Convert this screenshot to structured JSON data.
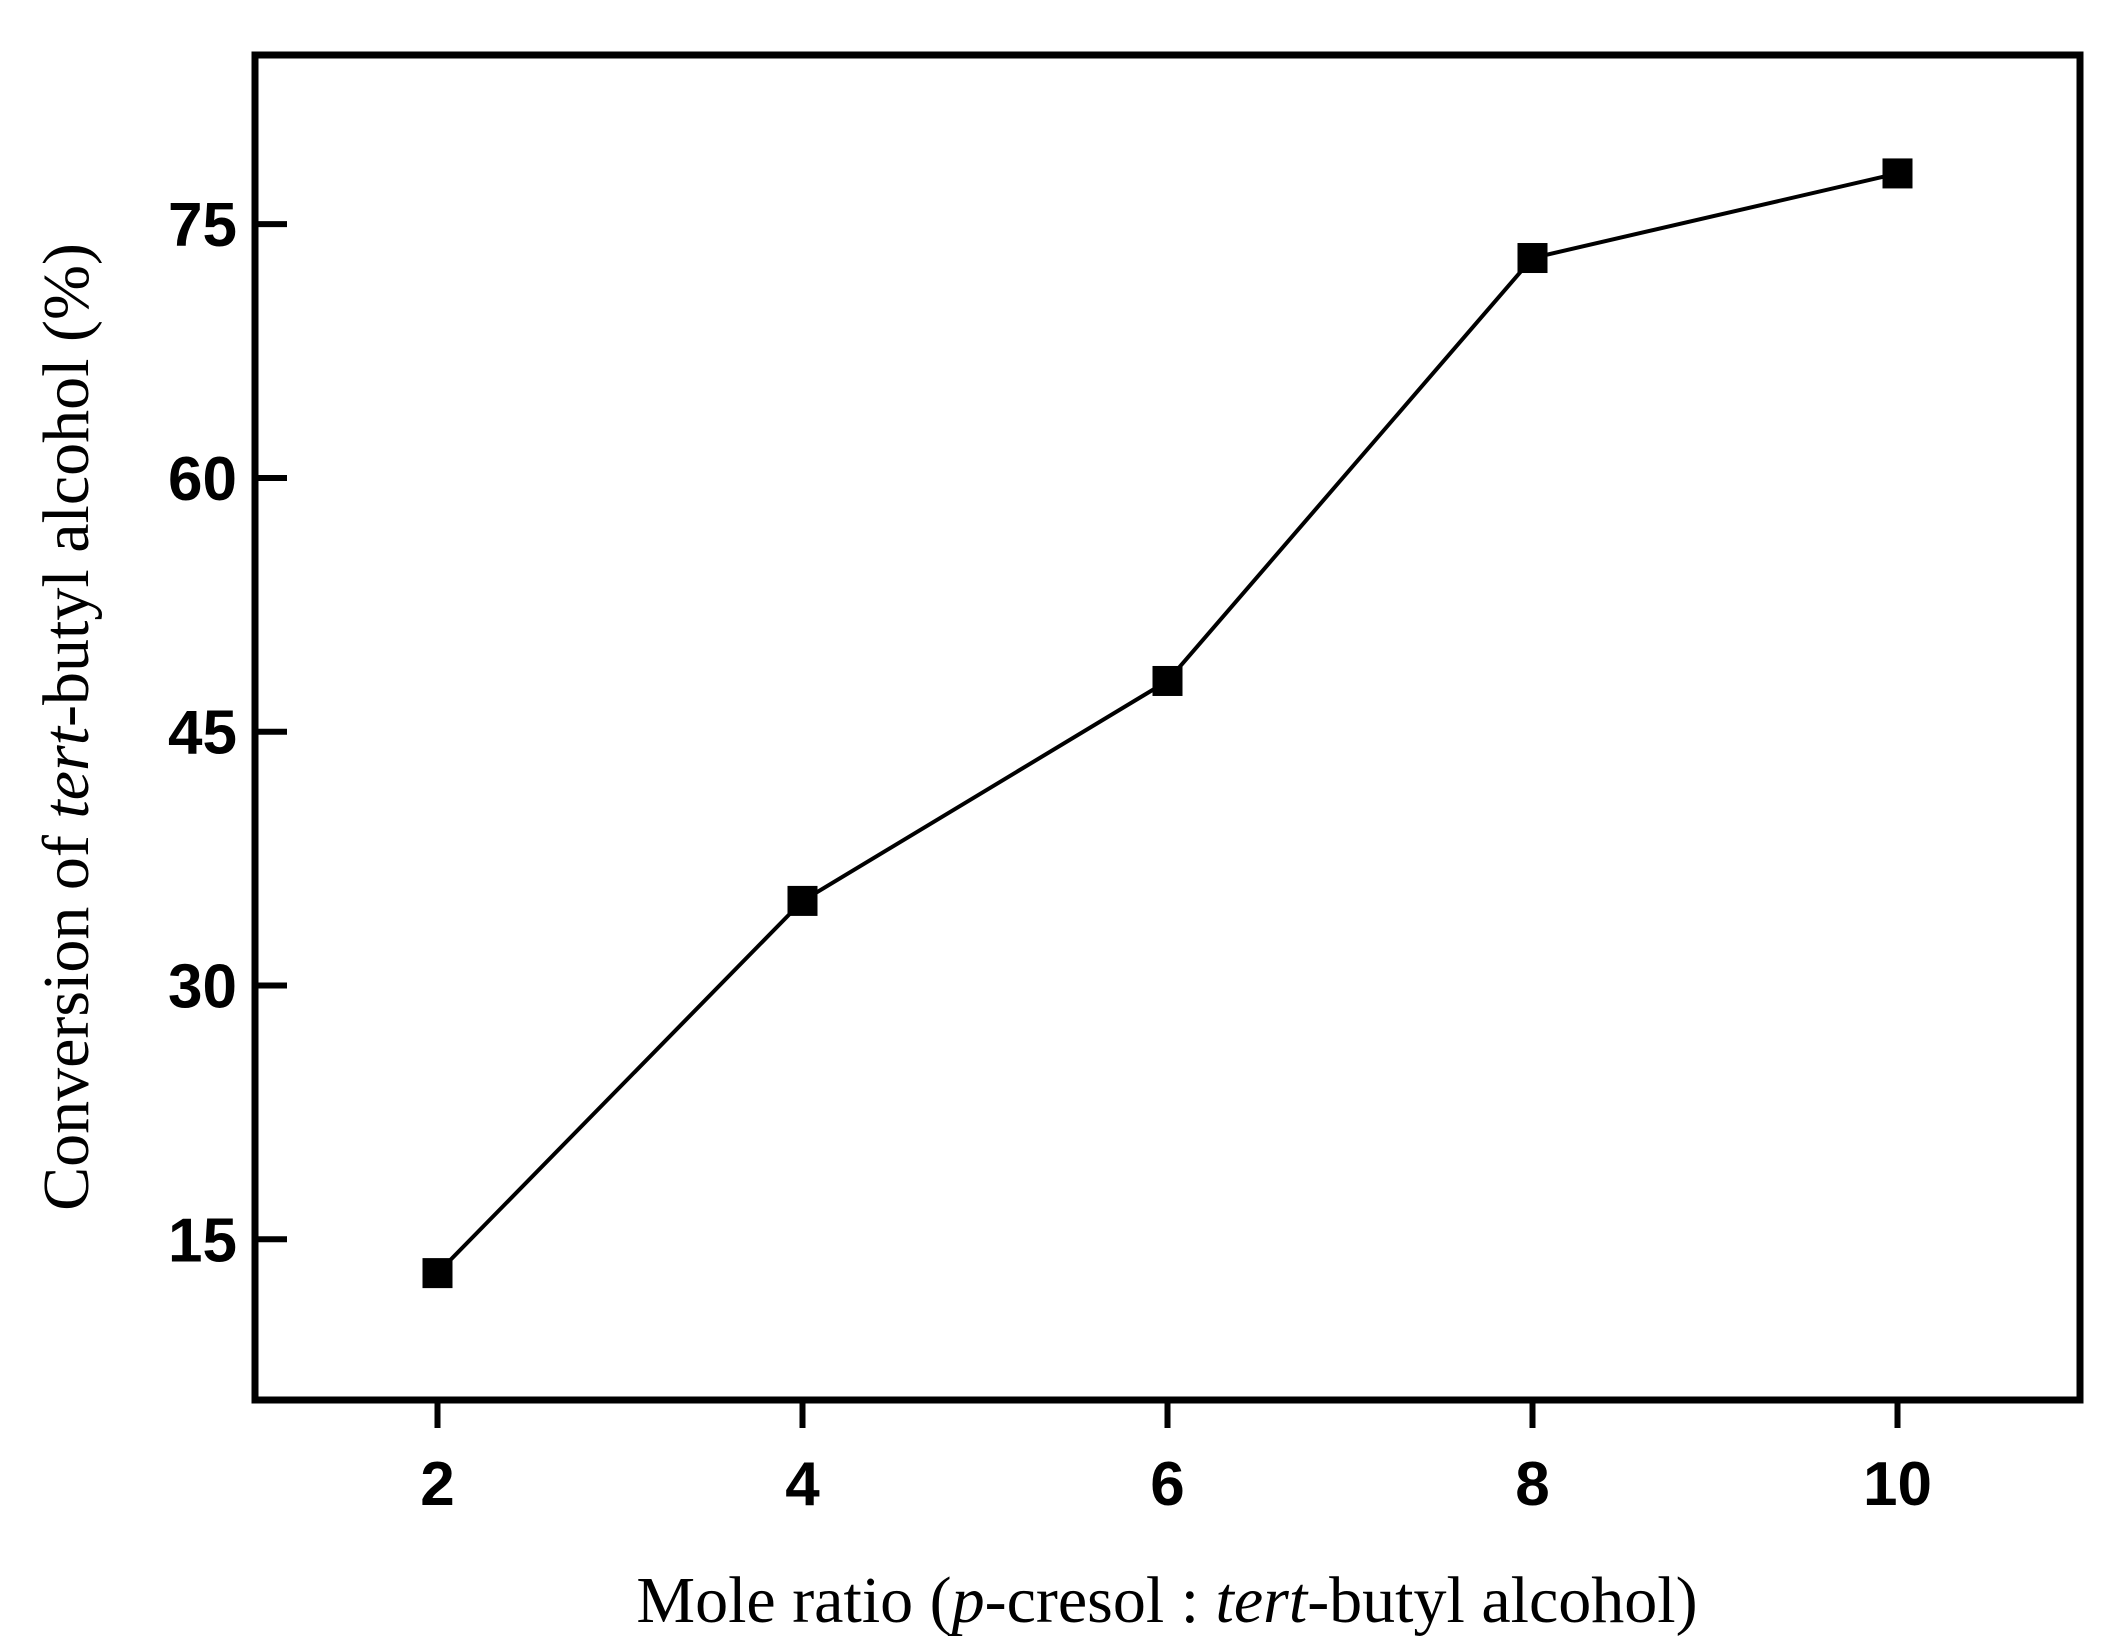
{
  "chart_data": {
    "type": "line",
    "title": "",
    "x": [
      2,
      4,
      6,
      8,
      10
    ],
    "series": [
      {
        "values": [
          13,
          35,
          48,
          73,
          78
        ],
        "color": "#000000",
        "marker": "square"
      }
    ],
    "xlim": [
      1,
      11
    ],
    "ylim": [
      5.5,
      85
    ],
    "xticks": [
      2,
      4,
      6,
      8,
      10
    ],
    "yticks": [
      15,
      30,
      45,
      60,
      75
    ],
    "xlabel_parts": [
      {
        "text": "Mole ratio (",
        "italic": false
      },
      {
        "text": "p",
        "italic": true
      },
      {
        "text": "-cresol : ",
        "italic": false
      },
      {
        "text": "tert",
        "italic": true
      },
      {
        "text": "-butyl alcohol)",
        "italic": false
      }
    ],
    "ylabel_parts": [
      {
        "text": "Conversion of ",
        "italic": false
      },
      {
        "text": "tert",
        "italic": true
      },
      {
        "text": "-butyl alcohol (%)",
        "italic": false
      }
    ],
    "grid": false,
    "legend": "none"
  }
}
